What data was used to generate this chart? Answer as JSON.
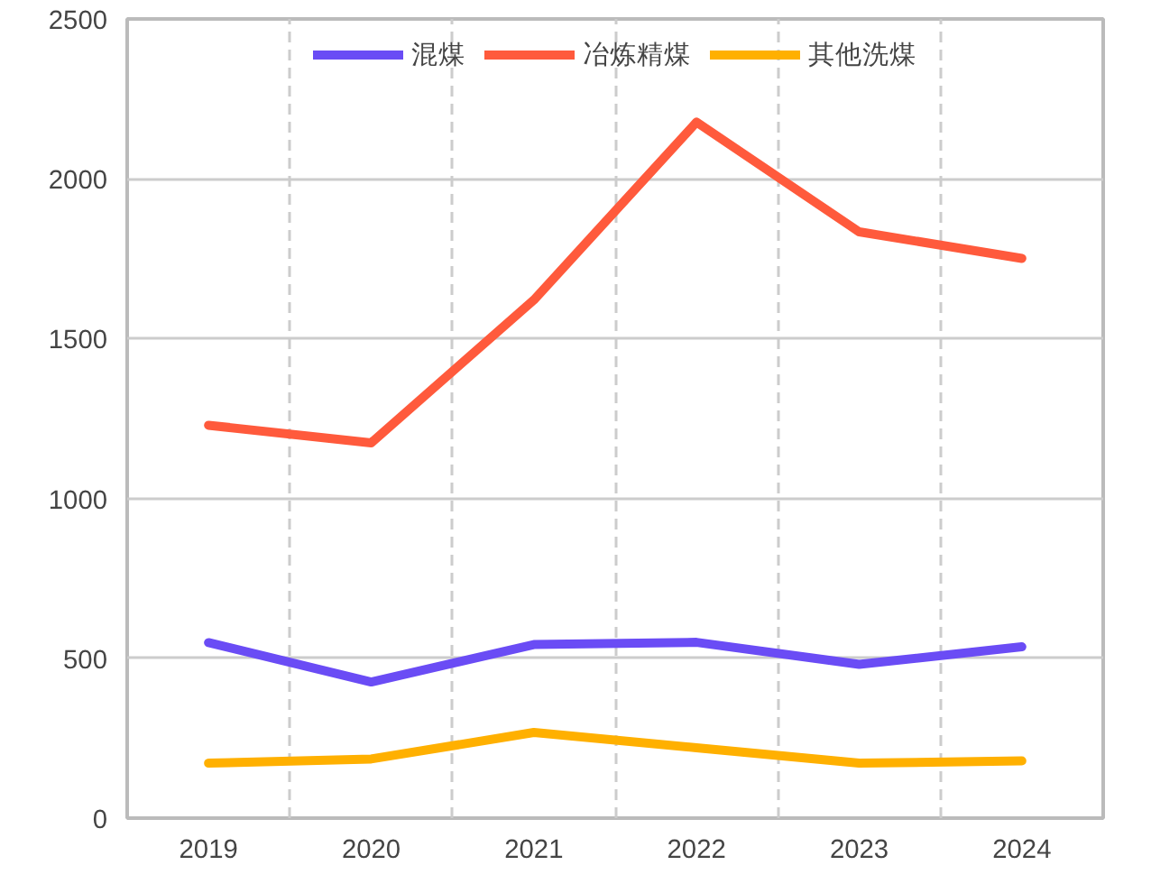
{
  "chart_data": {
    "type": "line",
    "categories": [
      "2019",
      "2020",
      "2021",
      "2022",
      "2023",
      "2024"
    ],
    "series": [
      {
        "name": "混煤",
        "color": "#6a4cf5",
        "values": [
          549,
          426,
          543,
          550,
          481,
          536
        ]
      },
      {
        "name": "冶炼精煤",
        "color": "#ff5a3c",
        "values": [
          1229,
          1174,
          1621,
          2177,
          1834,
          1751
        ]
      },
      {
        "name": "其他洗煤",
        "color": "#ffb000",
        "values": [
          172,
          185,
          268,
          220,
          172,
          179
        ]
      }
    ],
    "ylim": [
      0,
      2500
    ],
    "yticks": [
      0,
      500,
      1000,
      1500,
      2000,
      2500
    ],
    "grid": true,
    "legend": "top",
    "marker": "none",
    "line_style": "solid"
  }
}
